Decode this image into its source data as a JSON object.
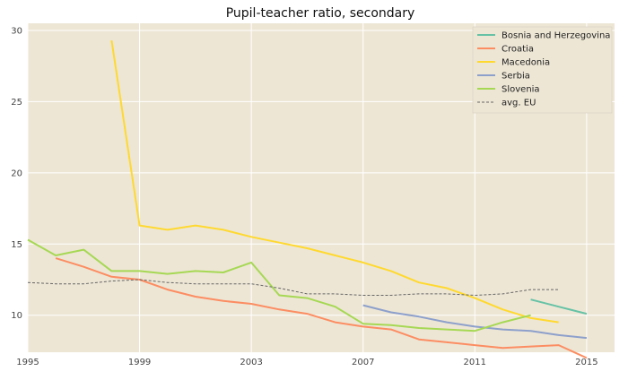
{
  "chart_data": {
    "type": "line",
    "title": "Pupil-teacher ratio, secondary",
    "xlabel": "",
    "ylabel": "",
    "xlim": [
      1995,
      2016
    ],
    "ylim": [
      7.4,
      30.5
    ],
    "x_ticks": [
      1995,
      1999,
      2003,
      2007,
      2011,
      2015
    ],
    "y_ticks": [
      10,
      15,
      20,
      25,
      30
    ],
    "x_tick_labels": [
      "1995",
      "1999",
      "2003",
      "2007",
      "2011",
      "2015"
    ],
    "y_tick_labels": [
      "10",
      "15",
      "20",
      "25",
      "30"
    ],
    "grid": true,
    "legend_position": "top-right",
    "background": "#ede6d5",
    "series": [
      {
        "name": "Bosnia and Herzegovina",
        "color": "#66c2a5",
        "dashed": false,
        "points": [
          [
            2013,
            11.1
          ],
          [
            2014,
            10.6
          ],
          [
            2015,
            10.1
          ]
        ]
      },
      {
        "name": "Croatia",
        "color": "#fc8d62",
        "dashed": false,
        "points": [
          [
            1996,
            14.0
          ],
          [
            1997,
            13.4
          ],
          [
            1998,
            12.7
          ],
          [
            1999,
            12.5
          ],
          [
            2000,
            11.8
          ],
          [
            2001,
            11.3
          ],
          [
            2002,
            11.0
          ],
          [
            2003,
            10.8
          ],
          [
            2004,
            10.4
          ],
          [
            2005,
            10.1
          ],
          [
            2006,
            9.5
          ],
          [
            2007,
            9.2
          ],
          [
            2008,
            9.0
          ],
          [
            2009,
            8.3
          ],
          [
            2010,
            8.1
          ],
          [
            2011,
            7.9
          ],
          [
            2012,
            7.7
          ],
          [
            2013,
            7.8
          ],
          [
            2014,
            7.9
          ],
          [
            2015,
            7.0
          ]
        ]
      },
      {
        "name": "Macedonia",
        "color": "#ffd92f",
        "dashed": false,
        "points": [
          [
            1998,
            29.3
          ],
          [
            1999,
            16.3
          ],
          [
            2000,
            16.0
          ],
          [
            2001,
            16.3
          ],
          [
            2002,
            16.0
          ],
          [
            2003,
            15.5
          ],
          [
            2004,
            15.1
          ],
          [
            2005,
            14.7
          ],
          [
            2006,
            14.2
          ],
          [
            2007,
            13.7
          ],
          [
            2008,
            13.1
          ],
          [
            2009,
            12.3
          ],
          [
            2010,
            11.9
          ],
          [
            2011,
            11.2
          ],
          [
            2012,
            10.4
          ],
          [
            2013,
            9.8
          ],
          [
            2014,
            9.5
          ]
        ]
      },
      {
        "name": "Serbia",
        "color": "#8da0cb",
        "dashed": false,
        "points": [
          [
            2007,
            10.7
          ],
          [
            2008,
            10.2
          ],
          [
            2009,
            9.9
          ],
          [
            2010,
            9.5
          ],
          [
            2011,
            9.2
          ],
          [
            2012,
            9.0
          ],
          [
            2013,
            8.9
          ],
          [
            2014,
            8.6
          ],
          [
            2015,
            8.4
          ]
        ]
      },
      {
        "name": "Slovenia",
        "color": "#a6d854",
        "dashed": false,
        "points": [
          [
            1995,
            15.3
          ],
          [
            1996,
            14.2
          ],
          [
            1997,
            14.6
          ],
          [
            1998,
            13.1
          ],
          [
            1999,
            13.1
          ],
          [
            2000,
            12.9
          ],
          [
            2001,
            13.1
          ],
          [
            2002,
            13.0
          ],
          [
            2003,
            13.7
          ],
          [
            2004,
            11.4
          ],
          [
            2005,
            11.2
          ],
          [
            2006,
            10.6
          ],
          [
            2007,
            9.4
          ],
          [
            2008,
            9.3
          ],
          [
            2009,
            9.1
          ],
          [
            2010,
            9.0
          ],
          [
            2011,
            8.9
          ],
          [
            2012,
            9.5
          ],
          [
            2013,
            10.0
          ]
        ]
      },
      {
        "name": "avg. EU",
        "color": "#666666",
        "dashed": true,
        "points": [
          [
            1995,
            12.3
          ],
          [
            1996,
            12.2
          ],
          [
            1997,
            12.2
          ],
          [
            1998,
            12.4
          ],
          [
            1999,
            12.5
          ],
          [
            2000,
            12.3
          ],
          [
            2001,
            12.2
          ],
          [
            2002,
            12.2
          ],
          [
            2003,
            12.2
          ],
          [
            2004,
            11.9
          ],
          [
            2005,
            11.5
          ],
          [
            2006,
            11.5
          ],
          [
            2007,
            11.4
          ],
          [
            2008,
            11.4
          ],
          [
            2009,
            11.5
          ],
          [
            2010,
            11.5
          ],
          [
            2011,
            11.4
          ],
          [
            2012,
            11.5
          ],
          [
            2013,
            11.8
          ],
          [
            2014,
            11.8
          ]
        ]
      }
    ]
  }
}
